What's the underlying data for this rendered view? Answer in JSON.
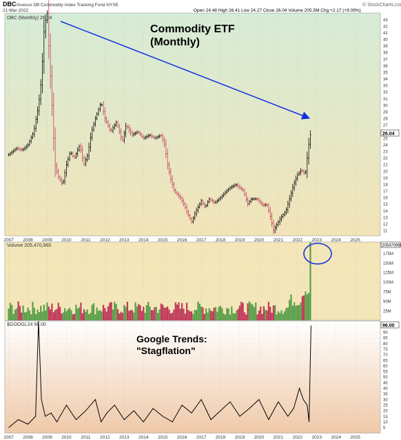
{
  "header": {
    "symbol": "DBC",
    "name": "Invesco DB Commodity Index Tracking Fund NYSE",
    "date": "21-Mar-2022",
    "quote": "Open 24.48   High 26.41   Low 24.27   Close 26.04   Volume 205.5M   Chg +2.17 (+9.09%)",
    "brand": "© StockCharts.com"
  },
  "colors": {
    "price_panel_bg_top": "#d6ecd6",
    "price_panel_bg_bottom": "#f3e4b8",
    "volume_panel_bg": "#f3e6b8",
    "trends_panel_bg_top": "#ffffff",
    "trends_panel_bg_bottom": "#f0c9a8",
    "up_bar": "#5a9e4a",
    "down_bar": "#c0395a",
    "arrow": "#1030e0",
    "circle": "#1030e0"
  },
  "chart_data": [
    {
      "type": "line",
      "panel": "price",
      "legend": "DBC (Monthly) 26.04",
      "annotation": "Commodity ETF\n(Monthly)",
      "last_value_label": "26.04",
      "x_tick_labels": [
        "2007",
        "2008",
        "2009",
        "2010",
        "2011",
        "2012",
        "2013",
        "2014",
        "2015",
        "2016",
        "2017",
        "2018",
        "2019",
        "2020",
        "2021",
        "2022",
        "2023",
        "2024",
        "2025"
      ],
      "y_tick_labels": [
        "11",
        "12",
        "13",
        "14",
        "15",
        "16",
        "17",
        "18",
        "19",
        "20",
        "21",
        "22",
        "23",
        "24",
        "25",
        "26",
        "27",
        "28",
        "29",
        "30",
        "31",
        "32",
        "33",
        "34",
        "35",
        "36",
        "37",
        "38",
        "39",
        "40",
        "41",
        "42",
        "43"
      ],
      "ylim": [
        10.2,
        44
      ],
      "x": [
        2006.5,
        2006.9,
        2007.2,
        2007.5,
        2007.8,
        2008.05,
        2008.2,
        2008.35,
        2008.5,
        2008.6,
        2008.75,
        2008.9,
        2009.1,
        2009.3,
        2009.5,
        2009.7,
        2009.9,
        2010.2,
        2010.4,
        2010.6,
        2010.8,
        2011.0,
        2011.3,
        2011.5,
        2011.8,
        2012.1,
        2012.4,
        2012.6,
        2012.9,
        2013.2,
        2013.5,
        2013.8,
        2014.1,
        2014.4,
        2014.6,
        2014.75,
        2014.9,
        2015.1,
        2015.4,
        2015.6,
        2015.8,
        2016.0,
        2016.2,
        2016.5,
        2016.7,
        2016.9,
        2017.2,
        2017.5,
        2017.8,
        2018.0,
        2018.3,
        2018.5,
        2018.7,
        2018.9,
        2019.1,
        2019.4,
        2019.7,
        2019.9,
        2020.1,
        2020.25,
        2020.4,
        2020.6,
        2020.9,
        2021.1,
        2021.3,
        2021.5,
        2021.7,
        2021.9,
        2022.0,
        2022.1,
        2022.2
      ],
      "y": [
        22.5,
        23.5,
        23.2,
        24.0,
        26.0,
        30.0,
        34.0,
        42.0,
        44.0,
        38.0,
        30.0,
        21.0,
        19.0,
        18.0,
        21.0,
        23.0,
        22.0,
        24.0,
        21.0,
        22.5,
        26.0,
        28.0,
        30.5,
        28.0,
        26.0,
        27.5,
        24.5,
        27.0,
        25.5,
        26.0,
        25.0,
        25.5,
        25.0,
        25.5,
        24.0,
        21.0,
        19.0,
        17.0,
        16.0,
        15.0,
        13.5,
        12.3,
        13.8,
        15.5,
        14.5,
        15.8,
        15.2,
        16.0,
        17.0,
        17.5,
        18.0,
        17.5,
        17.0,
        15.0,
        15.8,
        15.8,
        14.8,
        15.0,
        13.0,
        11.0,
        11.8,
        12.8,
        14.0,
        16.0,
        18.0,
        19.5,
        20.2,
        19.5,
        22.0,
        24.5,
        26.04
      ]
    },
    {
      "type": "bar",
      "panel": "volume",
      "legend": "Volume 205,470,960",
      "last_value_label": "205470960",
      "y_tick_labels": [
        "25M",
        "50M",
        "75M",
        "100M",
        "125M",
        "150M",
        "175M"
      ],
      "ylim": [
        0,
        205
      ],
      "values_millions": [
        55,
        8,
        205
      ],
      "note": "volume shown as monthly bars; values are those explicitly represented"
    },
    {
      "type": "line",
      "panel": "google_trends",
      "legend": "$GOOGL24 96.00",
      "annotation": "Google Trends:\n\"Stagflation\"",
      "last_value_label": "96.00",
      "y_tick_labels": [
        "5",
        "10",
        "15",
        "20",
        "25",
        "30",
        "35",
        "40",
        "45",
        "50",
        "55",
        "60",
        "65",
        "70",
        "75",
        "80",
        "85",
        "90"
      ],
      "ylim": [
        0,
        100
      ],
      "x": [
        2006.5,
        2007.0,
        2007.5,
        2007.9,
        2008.05,
        2008.2,
        2008.4,
        2008.7,
        2009.0,
        2009.5,
        2010.0,
        2010.5,
        2011.0,
        2011.3,
        2011.6,
        2012.0,
        2012.5,
        2013.0,
        2013.5,
        2014.0,
        2014.5,
        2015.0,
        2015.5,
        2016.0,
        2016.5,
        2017.0,
        2017.5,
        2018.0,
        2018.5,
        2019.0,
        2019.5,
        2020.0,
        2020.5,
        2021.0,
        2021.3,
        2021.6,
        2021.8,
        2022.0,
        2022.1,
        2022.2
      ],
      "y": [
        5,
        12,
        8,
        15,
        100,
        30,
        15,
        18,
        10,
        25,
        12,
        20,
        30,
        10,
        18,
        25,
        12,
        20,
        10,
        22,
        15,
        10,
        25,
        18,
        30,
        12,
        20,
        28,
        15,
        22,
        30,
        12,
        28,
        15,
        22,
        40,
        30,
        25,
        10,
        96
      ]
    }
  ],
  "x_axis_labels": [
    "2007",
    "2008",
    "2009",
    "2010",
    "2011",
    "2012",
    "2013",
    "2014",
    "2015",
    "2016",
    "2017",
    "2018",
    "2019",
    "2020",
    "2021",
    "2022",
    "2023",
    "2024",
    "2025"
  ]
}
